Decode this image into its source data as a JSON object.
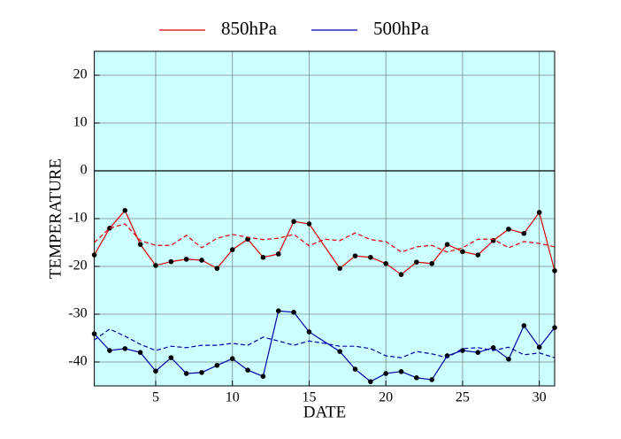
{
  "chart_data": {
    "type": "line",
    "xlabel": "DATE",
    "ylabel": "TEMPERATURE",
    "xlim": [
      1,
      31
    ],
    "ylim": [
      -45,
      25
    ],
    "xticks": [
      5,
      10,
      15,
      20,
      25,
      30
    ],
    "yticks": [
      -40,
      -30,
      -20,
      -10,
      0,
      10,
      20
    ],
    "grid": true,
    "background": "#ccffff",
    "series": [
      {
        "name": "850hPa",
        "color": "#dd0000",
        "markers": true,
        "x": [
          1,
          2,
          3,
          4,
          5,
          6,
          7,
          8,
          9,
          10,
          11,
          12,
          13,
          14,
          15,
          17,
          18,
          19,
          20,
          21,
          22,
          23,
          24,
          25,
          26,
          27,
          28,
          29,
          30,
          31
        ],
        "values": [
          -17.6,
          -12,
          -8.3,
          -15.4,
          -19.8,
          -19,
          -18.5,
          -18.7,
          -20.4,
          -16.5,
          -14.3,
          -18.1,
          -17.4,
          -10.6,
          -11.1,
          -20.4,
          -17.8,
          -18.1,
          -19.4,
          -21.7,
          -19.1,
          -19.4,
          -15.4,
          -16.9,
          -17.6,
          -14.6,
          -12.2,
          -13.1,
          -8.7,
          -20.9
        ]
      },
      {
        "name": "500hPa",
        "color": "#0000aa",
        "markers": true,
        "x": [
          1,
          2,
          3,
          4,
          5,
          6,
          7,
          8,
          9,
          10,
          11,
          12,
          13,
          14,
          15,
          17,
          18,
          19,
          20,
          21,
          22,
          23,
          24,
          25,
          26,
          27,
          28,
          29,
          30,
          31
        ],
        "values": [
          -34.1,
          -37.6,
          -37.2,
          -38,
          -41.9,
          -39.1,
          -42.4,
          -42.2,
          -40.7,
          -39.3,
          -41.7,
          -43,
          -29.3,
          -29.6,
          -33.7,
          -37.8,
          -41.5,
          -44.1,
          -42.4,
          -42,
          -43.3,
          -43.7,
          -38.7,
          -37.6,
          -38,
          -37,
          -39.4,
          -32.4,
          -36.9,
          -32.8
        ]
      },
      {
        "color": "#dd0000",
        "dash": true,
        "x": [
          1,
          2,
          3,
          4,
          5,
          6,
          7,
          8,
          9,
          10,
          11,
          12,
          13,
          14,
          15,
          16,
          17,
          18,
          19,
          20,
          21,
          22,
          23,
          24,
          25,
          26,
          27,
          28,
          29,
          30,
          31
        ],
        "values": [
          -15,
          -12,
          -11.1,
          -14.6,
          -15.6,
          -15.6,
          -13.5,
          -16.1,
          -14.1,
          -13.3,
          -13.9,
          -14.4,
          -14.1,
          -13.3,
          -15.7,
          -14.3,
          -14.6,
          -13,
          -14.4,
          -14.8,
          -17,
          -15.9,
          -15.6,
          -17,
          -16.1,
          -14.3,
          -14.3,
          -16.1,
          -14.8,
          -15.2,
          -15.9
        ]
      },
      {
        "color": "#0000aa",
        "dash": true,
        "x": [
          1,
          2,
          3,
          4,
          5,
          6,
          7,
          8,
          9,
          10,
          11,
          12,
          13,
          14,
          15,
          16,
          17,
          18,
          19,
          20,
          21,
          22,
          23,
          24,
          25,
          26,
          27,
          28,
          29,
          30,
          31
        ],
        "values": [
          -35.4,
          -33.1,
          -34.6,
          -36.3,
          -37.6,
          -36.7,
          -37,
          -36.5,
          -36.5,
          -36.1,
          -36.5,
          -34.8,
          -35.6,
          -36.5,
          -35.6,
          -36.1,
          -36.7,
          -36.7,
          -37.2,
          -38.7,
          -39.1,
          -37.8,
          -38.3,
          -39.1,
          -37.2,
          -37,
          -37.6,
          -36.9,
          -38.5,
          -38.1,
          -39.1
        ]
      }
    ]
  }
}
